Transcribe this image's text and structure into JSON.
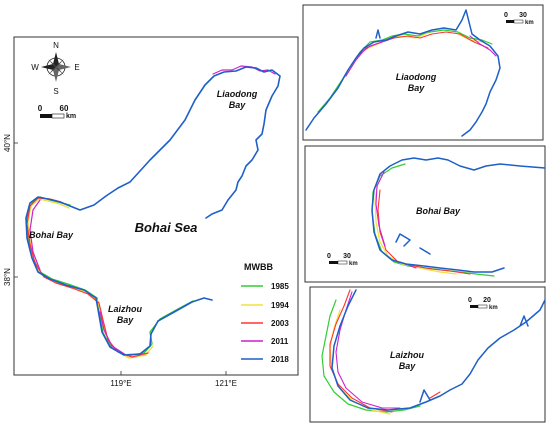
{
  "main_map": {
    "compass": {
      "n": "N",
      "s": "S",
      "e": "E",
      "w": "W"
    },
    "scale": {
      "zero": "0",
      "value": "60",
      "unit": "km"
    },
    "labels": {
      "sea": "Bohai Sea",
      "liaodong": [
        "Liaodong",
        "Bay"
      ],
      "bohai_bay": "Bohai Bay",
      "laizhou": [
        "Laizhou",
        "Bay"
      ]
    },
    "lat_ticks": [
      "40°N",
      "38°N"
    ],
    "lon_ticks": [
      "119°E",
      "121°E"
    ]
  },
  "legend": {
    "title": "MWBB",
    "items": [
      {
        "year": "1985",
        "color": "#33cc33"
      },
      {
        "year": "1994",
        "color": "#f0e040"
      },
      {
        "year": "2003",
        "color": "#ff3333"
      },
      {
        "year": "2011",
        "color": "#cc22cc"
      },
      {
        "year": "2018",
        "color": "#1e5fc8"
      }
    ]
  },
  "inset_liaodong": {
    "title": [
      "Liaodong",
      "Bay"
    ],
    "scale": {
      "zero": "0",
      "value": "30",
      "unit": "km"
    }
  },
  "inset_bohai": {
    "title": "Bohai Bay",
    "scale": {
      "zero": "0",
      "value": "30",
      "unit": "km"
    }
  },
  "inset_laizhou": {
    "title": [
      "Laizhou",
      "Bay"
    ],
    "scale": {
      "zero": "0",
      "value": "20",
      "unit": "km"
    }
  }
}
